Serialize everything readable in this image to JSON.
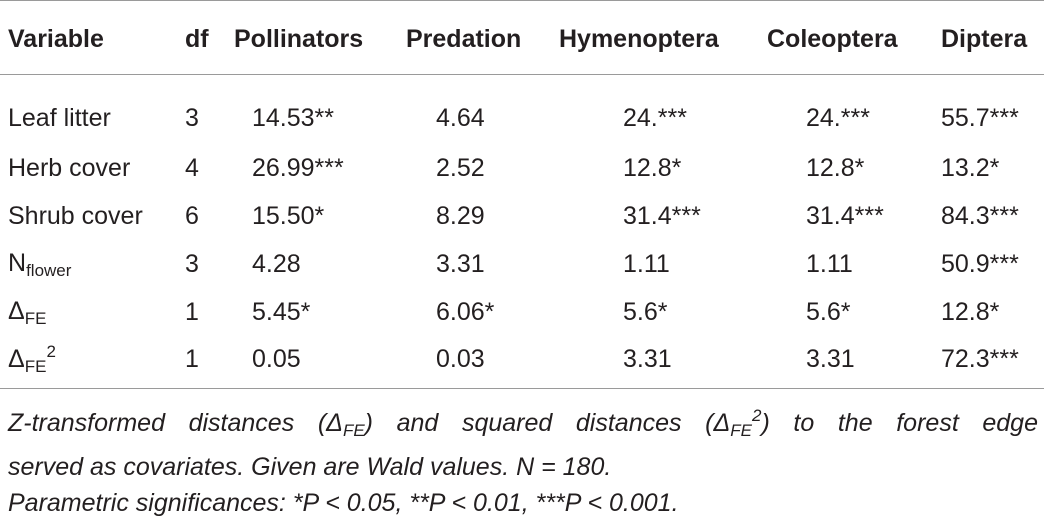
{
  "table": {
    "headers": [
      "Variable",
      "df",
      "Pollinators",
      "Predation",
      "Hymenoptera",
      "Coleoptera",
      "Diptera"
    ],
    "rows": [
      {
        "variable": "Leaf litter",
        "df": "3",
        "pollinators": "14.53**",
        "predation": "4.64",
        "hymenoptera": "24.***",
        "coleoptera": "24.***",
        "diptera": "55.7***"
      },
      {
        "variable": "Herb cover",
        "df": "4",
        "pollinators": "26.99***",
        "predation": "2.52",
        "hymenoptera": "12.8*",
        "coleoptera": "12.8*",
        "diptera": "13.2*"
      },
      {
        "variable": "Shrub cover",
        "df": "6",
        "pollinators": "15.50*",
        "predation": "8.29",
        "hymenoptera": "31.4***",
        "coleoptera": "31.4***",
        "diptera": "84.3***"
      },
      {
        "variable": "N",
        "variable_sub": "flower",
        "df": "3",
        "pollinators": "4.28",
        "predation": "3.31",
        "hymenoptera": "1.11",
        "coleoptera": "1.11",
        "diptera": "50.9***"
      },
      {
        "variable": "Δ",
        "variable_sub": "FE",
        "df": "1",
        "pollinators": "5.45*",
        "predation": "6.06*",
        "hymenoptera": "5.6*",
        "coleoptera": "5.6*",
        "diptera": "12.8*"
      },
      {
        "variable": "Δ",
        "variable_sub": "FE",
        "variable_sup": "2",
        "df": "1",
        "pollinators": "0.05",
        "predation": "0.03",
        "hymenoptera": "3.31",
        "coleoptera": "3.31",
        "diptera": "72.3***"
      }
    ]
  },
  "footnote": {
    "line1_a": "Z-transformed distances (Δ",
    "line1_sub1": "FE",
    "line1_b": ") and squared distances (Δ",
    "line1_sub2": "FE",
    "line1_sup": "2",
    "line1_c": ") to the forest edge",
    "line2": "served as covariates. Given are Wald values. N = 180.",
    "line3": "Parametric significances: *P < 0.05, **P < 0.01, ***P < 0.001."
  }
}
